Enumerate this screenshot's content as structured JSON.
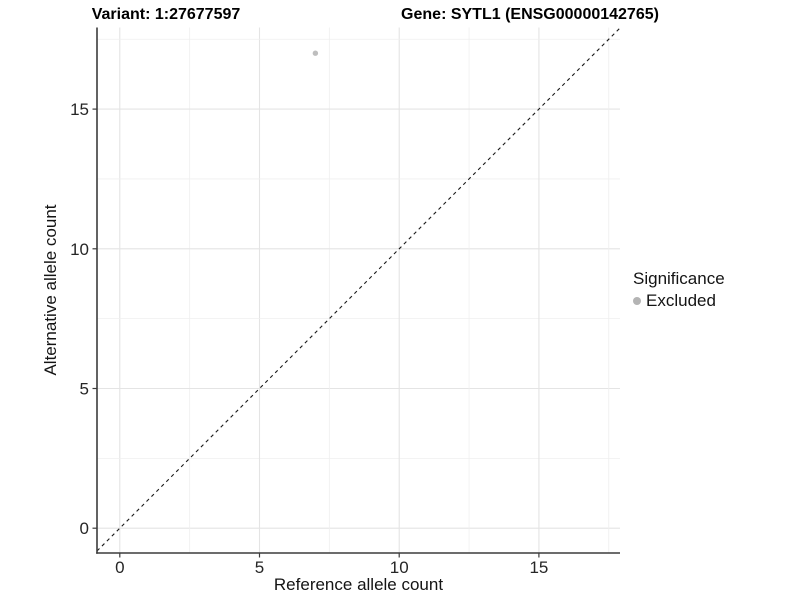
{
  "titles": {
    "left": "Variant: 1:27677597",
    "right": "Gene: SYTL1 (ENSG00000142765)"
  },
  "chart_data": {
    "type": "scatter",
    "title_left": "Variant: 1:27677597",
    "title_right": "Gene: SYTL1 (ENSG00000142765)",
    "xlabel": "Reference allele count",
    "ylabel": "Alternative allele count",
    "xlim": [
      -0.9,
      17.9
    ],
    "ylim": [
      -0.9,
      17.9
    ],
    "x_ticks": [
      0,
      5,
      10,
      15
    ],
    "y_ticks": [
      0,
      5,
      10,
      15
    ],
    "minor_grid_step": 2.5,
    "grid": true,
    "series": [
      {
        "name": "Excluded",
        "color": "#bebebe",
        "points": [
          {
            "x": 7,
            "y": 17
          }
        ]
      }
    ],
    "diagonal": {
      "type": "identity-line",
      "style": "dashed",
      "color": "#1a1a1a"
    },
    "legend": {
      "title": "Significance",
      "position": "right",
      "items": [
        {
          "label": "Excluded",
          "color": "#b4b4b4"
        }
      ]
    },
    "colors": {
      "major_grid": "#e4e4e4",
      "minor_grid": "#efefef",
      "axis_line": "#3c3c3c",
      "tick_text": "#262626"
    }
  }
}
